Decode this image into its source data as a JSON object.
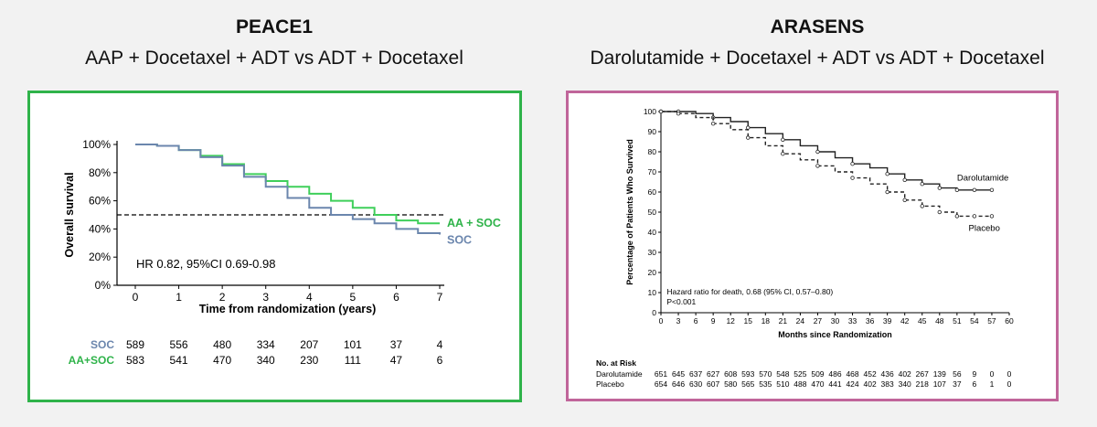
{
  "left": {
    "title": "PEACE1",
    "subtitle": "AAP + Docetaxel + ADT vs ADT + Docetaxel",
    "border_color": "#2fb34a"
  },
  "right": {
    "title": "ARASENS",
    "subtitle": "Darolutamide + Docetaxel + ADT vs ADT + Docetaxel",
    "border_color": "#c0659a"
  },
  "chart_data": [
    {
      "type": "line",
      "subtype": "kaplan-meier",
      "xlabel": "Time from randomization (years)",
      "ylabel": "Overall survival",
      "xlim": [
        0,
        7
      ],
      "ylim": [
        0,
        100
      ],
      "xticks": [
        "0",
        "1",
        "2",
        "3",
        "4",
        "5",
        "6",
        "7"
      ],
      "yticks": [
        "0%",
        "20%",
        "40%",
        "60%",
        "80%",
        "100%"
      ],
      "reference_line_y": 50,
      "annotation": "HR 0.82, 95%CI 0.69-0.98",
      "series": [
        {
          "name": "AA + SOC",
          "color": "#3fcf5a",
          "x": [
            0,
            0.5,
            1,
            1.5,
            2,
            2.5,
            3,
            3.5,
            4,
            4.5,
            5,
            5.5,
            6,
            6.5,
            7
          ],
          "y": [
            100,
            99,
            96,
            92,
            86,
            79,
            74,
            70,
            65,
            60,
            55,
            50,
            46,
            44,
            44
          ]
        },
        {
          "name": "SOC",
          "color": "#6b86ad",
          "x": [
            0,
            0.5,
            1,
            1.5,
            2,
            2.5,
            3,
            3.5,
            4,
            4.5,
            5,
            5.5,
            6,
            6.5,
            7
          ],
          "y": [
            100,
            99,
            96,
            91,
            85,
            77,
            70,
            62,
            55,
            50,
            47,
            44,
            40,
            37,
            36
          ]
        }
      ],
      "risk_table": {
        "rows": [
          {
            "label": "SOC",
            "color": "#6b86ad",
            "values": [
              "589",
              "556",
              "480",
              "334",
              "207",
              "101",
              "37",
              "4"
            ]
          },
          {
            "label": "AA+SOC",
            "color": "#2fb34a",
            "values": [
              "583",
              "541",
              "470",
              "340",
              "230",
              "111",
              "47",
              "6"
            ]
          }
        ]
      }
    },
    {
      "type": "line",
      "subtype": "kaplan-meier",
      "xlabel": "Months since Randomization",
      "ylabel": "Percentage of Patients Who Survived",
      "xlim": [
        0,
        60
      ],
      "ylim": [
        0,
        100
      ],
      "xticks": [
        "0",
        "3",
        "6",
        "9",
        "12",
        "15",
        "18",
        "21",
        "24",
        "27",
        "30",
        "33",
        "36",
        "39",
        "42",
        "45",
        "48",
        "51",
        "54",
        "57",
        "60"
      ],
      "yticks": [
        "0",
        "10",
        "20",
        "30",
        "40",
        "50",
        "60",
        "70",
        "80",
        "90",
        "100"
      ],
      "annotation_lines": [
        "Hazard ratio for death, 0.68 (95% CI, 0.57–0.80)",
        "P<0.001"
      ],
      "series": [
        {
          "name": "Darolutamide",
          "style": "solid",
          "x": [
            0,
            3,
            6,
            9,
            12,
            15,
            18,
            21,
            24,
            27,
            30,
            33,
            36,
            39,
            42,
            45,
            48,
            51,
            54,
            57
          ],
          "y": [
            100,
            100,
            99,
            97,
            95,
            92,
            89,
            86,
            83,
            80,
            77,
            74,
            72,
            69,
            66,
            64,
            62,
            61,
            61,
            61
          ]
        },
        {
          "name": "Placebo",
          "style": "dashed",
          "x": [
            0,
            3,
            6,
            9,
            12,
            15,
            18,
            21,
            24,
            27,
            30,
            33,
            36,
            39,
            42,
            45,
            48,
            51,
            54,
            57
          ],
          "y": [
            100,
            99,
            97,
            94,
            91,
            87,
            83,
            79,
            76,
            73,
            70,
            67,
            64,
            60,
            56,
            53,
            50,
            48,
            48,
            48
          ]
        }
      ],
      "risk_table": {
        "header": "No. at Risk",
        "rows": [
          {
            "label": "Darolutamide",
            "values": [
              "651",
              "645",
              "637",
              "627",
              "608",
              "593",
              "570",
              "548",
              "525",
              "509",
              "486",
              "468",
              "452",
              "436",
              "402",
              "267",
              "139",
              "56",
              "9",
              "0",
              "0"
            ]
          },
          {
            "label": "Placebo",
            "values": [
              "654",
              "646",
              "630",
              "607",
              "580",
              "565",
              "535",
              "510",
              "488",
              "470",
              "441",
              "424",
              "402",
              "383",
              "340",
              "218",
              "107",
              "37",
              "6",
              "1",
              "0"
            ]
          }
        ]
      }
    }
  ]
}
